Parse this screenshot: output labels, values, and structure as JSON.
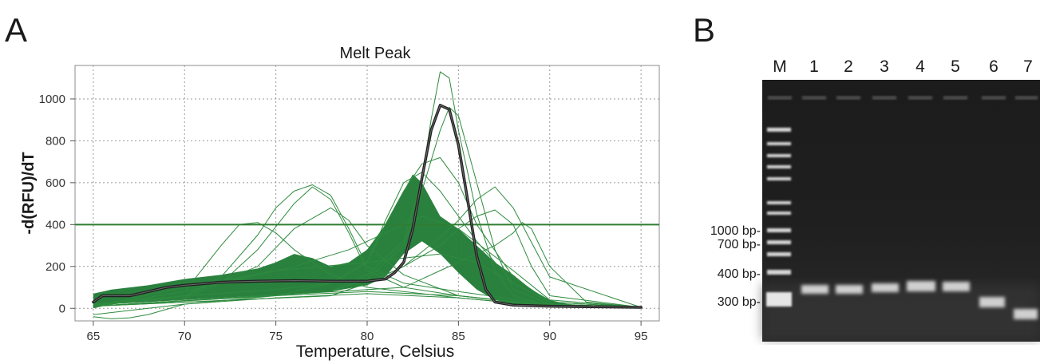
{
  "panels": {
    "a_label": "A",
    "b_label": "B"
  },
  "chart_data": {
    "type": "line",
    "title": "Melt Peak",
    "xlabel": "Temperature, Celsius",
    "ylabel": "-d(RFU)/dT",
    "xlim": [
      64,
      96
    ],
    "ylim": [
      -60,
      1160
    ],
    "xticks": [
      65,
      70,
      75,
      80,
      85,
      90,
      95
    ],
    "yticks": [
      0,
      200,
      400,
      600,
      800,
      1000
    ],
    "grid": true,
    "threshold": 400,
    "colors": {
      "traces": "#2e8b3e",
      "band": "#1f7a34",
      "highlight": "#1f1f1f",
      "threshold": "#2e7d32"
    },
    "highlighted_series": {
      "x": [
        65,
        65.5,
        66,
        67,
        68,
        69,
        70,
        72,
        74,
        76,
        78,
        80,
        81,
        81.5,
        82,
        82.5,
        83,
        83.5,
        84,
        84.5,
        85,
        85.5,
        86,
        86.5,
        87,
        88,
        90,
        92,
        95
      ],
      "y": [
        30,
        60,
        60,
        60,
        80,
        100,
        110,
        125,
        130,
        132,
        130,
        130,
        140,
        170,
        220,
        380,
        620,
        850,
        970,
        950,
        780,
        520,
        250,
        90,
        30,
        15,
        10,
        8,
        5
      ]
    },
    "band_upper": {
      "x": [
        65,
        66,
        68,
        70,
        72,
        74,
        75,
        76,
        77,
        78,
        79,
        80,
        81,
        82,
        82.5,
        83,
        84,
        85,
        86,
        87,
        88,
        89,
        90,
        91,
        92,
        95
      ],
      "y": [
        70,
        90,
        110,
        140,
        160,
        190,
        220,
        260,
        240,
        200,
        220,
        280,
        400,
        560,
        640,
        600,
        440,
        380,
        300,
        220,
        160,
        90,
        40,
        20,
        15,
        10
      ]
    },
    "band_lower": {
      "x": [
        65,
        66,
        68,
        70,
        72,
        74,
        76,
        78,
        80,
        81,
        82,
        83,
        84,
        85,
        86,
        87,
        88,
        90,
        92,
        95
      ],
      "y": [
        0,
        20,
        30,
        40,
        50,
        60,
        70,
        80,
        110,
        150,
        260,
        320,
        260,
        170,
        90,
        40,
        20,
        10,
        5,
        0
      ]
    },
    "sample_traces": [
      {
        "x": [
          65,
          70,
          72,
          74,
          75,
          76,
          77,
          78,
          79,
          80,
          82,
          85,
          90,
          95
        ],
        "y": [
          20,
          60,
          150,
          350,
          480,
          560,
          590,
          540,
          380,
          200,
          120,
          80,
          20,
          5
        ]
      },
      {
        "x": [
          65,
          70,
          72,
          74,
          76,
          77,
          78,
          79,
          80,
          82,
          85,
          90,
          95
        ],
        "y": [
          20,
          50,
          120,
          280,
          500,
          580,
          520,
          360,
          180,
          100,
          60,
          15,
          5
        ]
      },
      {
        "x": [
          65,
          70,
          72,
          73,
          74,
          75,
          76,
          78,
          80,
          85,
          90,
          95
        ],
        "y": [
          10,
          80,
          300,
          400,
          410,
          360,
          280,
          160,
          100,
          50,
          10,
          5
        ]
      },
      {
        "x": [
          65,
          70,
          74,
          76,
          78,
          79,
          80,
          82,
          85,
          90,
          95
        ],
        "y": [
          10,
          60,
          200,
          380,
          480,
          420,
          300,
          160,
          60,
          10,
          5
        ]
      },
      {
        "x": [
          65,
          75,
          78,
          80,
          81,
          82,
          83,
          84,
          85,
          86,
          88,
          90,
          95
        ],
        "y": [
          10,
          60,
          120,
          220,
          400,
          560,
          690,
          720,
          600,
          400,
          150,
          30,
          5
        ]
      },
      {
        "x": [
          65,
          78,
          80,
          82,
          83,
          83.5,
          84,
          84.5,
          85,
          86,
          87,
          88,
          90,
          95
        ],
        "y": [
          10,
          80,
          160,
          320,
          620,
          900,
          1130,
          1100,
          850,
          450,
          180,
          60,
          15,
          5
        ]
      },
      {
        "x": [
          65,
          78,
          80,
          82,
          83,
          84,
          84.5,
          85,
          86,
          87,
          88,
          90,
          95
        ],
        "y": [
          10,
          80,
          140,
          300,
          560,
          850,
          960,
          920,
          600,
          280,
          90,
          20,
          5
        ]
      },
      {
        "x": [
          65,
          78,
          80,
          82,
          84,
          85,
          86,
          87,
          88,
          90,
          95
        ],
        "y": [
          10,
          60,
          120,
          200,
          340,
          420,
          520,
          580,
          480,
          150,
          5
        ]
      },
      {
        "x": [
          65,
          78,
          80,
          82,
          84,
          85,
          86,
          87,
          88,
          89,
          90,
          95
        ],
        "y": [
          10,
          60,
          120,
          200,
          300,
          380,
          440,
          470,
          400,
          200,
          60,
          5
        ]
      },
      {
        "x": [
          65,
          82,
          84,
          86,
          87,
          88,
          88.5,
          89,
          90,
          92,
          95
        ],
        "y": [
          10,
          100,
          180,
          260,
          300,
          360,
          410,
          380,
          200,
          30,
          5
        ]
      },
      {
        "x": [
          65,
          70,
          75,
          78,
          80,
          81,
          82,
          83,
          84,
          86,
          88,
          90,
          95
        ],
        "y": [
          15,
          60,
          90,
          120,
          220,
          420,
          600,
          650,
          560,
          320,
          120,
          30,
          5
        ]
      },
      {
        "x": [
          65,
          70,
          75,
          80,
          85,
          90,
          95
        ],
        "y": [
          -30,
          20,
          60,
          80,
          60,
          15,
          5
        ]
      },
      {
        "x": [
          65,
          66,
          67,
          68,
          70,
          75,
          80,
          85,
          90,
          95
        ],
        "y": [
          -40,
          -50,
          -45,
          -30,
          20,
          50,
          70,
          50,
          10,
          5
        ]
      },
      {
        "x": [
          65,
          70,
          75,
          80,
          84,
          86,
          88,
          90,
          95
        ],
        "y": [
          10,
          100,
          180,
          220,
          260,
          220,
          120,
          30,
          5
        ]
      },
      {
        "x": [
          65,
          70,
          73,
          76,
          79,
          81,
          83,
          85,
          88,
          90,
          95
        ],
        "y": [
          10,
          80,
          140,
          200,
          280,
          360,
          440,
          380,
          180,
          40,
          5
        ]
      }
    ]
  },
  "gel": {
    "lane_labels": [
      "M",
      "1",
      "2",
      "3",
      "4",
      "5",
      "6",
      "7"
    ],
    "size_labels": [
      "1000 bp-",
      "700 bp-",
      "400 bp-",
      "300 bp-"
    ]
  }
}
